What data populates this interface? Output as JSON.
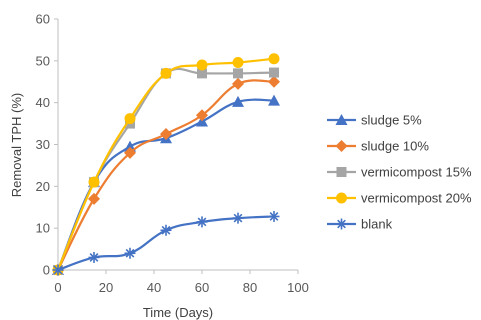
{
  "chart_data": {
    "type": "line",
    "title": "",
    "xlabel": "Time (Days)",
    "ylabel": "Removal TPH (%)",
    "xlim": [
      0,
      100
    ],
    "ylim": [
      0,
      60
    ],
    "xticks": [
      0,
      20,
      40,
      60,
      80,
      100
    ],
    "yticks": [
      0,
      10,
      20,
      30,
      40,
      50,
      60
    ],
    "grid": false,
    "smooth": true,
    "legend_position": "right",
    "x": [
      0,
      15,
      30,
      45,
      60,
      75,
      90
    ],
    "series": [
      {
        "name": "sludge 5%",
        "color": "#4472C4",
        "marker": "triangle",
        "values": [
          0,
          21,
          29.5,
          31.5,
          35.5,
          40.2,
          40.5
        ]
      },
      {
        "name": "sludge 10%",
        "color": "#ED7D31",
        "marker": "diamond",
        "values": [
          0,
          17,
          28,
          32.5,
          37,
          44.5,
          45
        ]
      },
      {
        "name": "vermicompost 15%",
        "color": "#A5A5A5",
        "marker": "square",
        "values": [
          0,
          21,
          35,
          47,
          47,
          47,
          47.2
        ]
      },
      {
        "name": "vermicompost 20%",
        "color": "#FFC000",
        "marker": "circle",
        "values": [
          0,
          21,
          36.2,
          47,
          49,
          49.6,
          50.5
        ]
      },
      {
        "name": "blank",
        "color": "#4472C4",
        "marker": "star",
        "values": [
          0,
          3,
          4,
          9.5,
          11.5,
          12.4,
          12.8
        ]
      }
    ]
  }
}
